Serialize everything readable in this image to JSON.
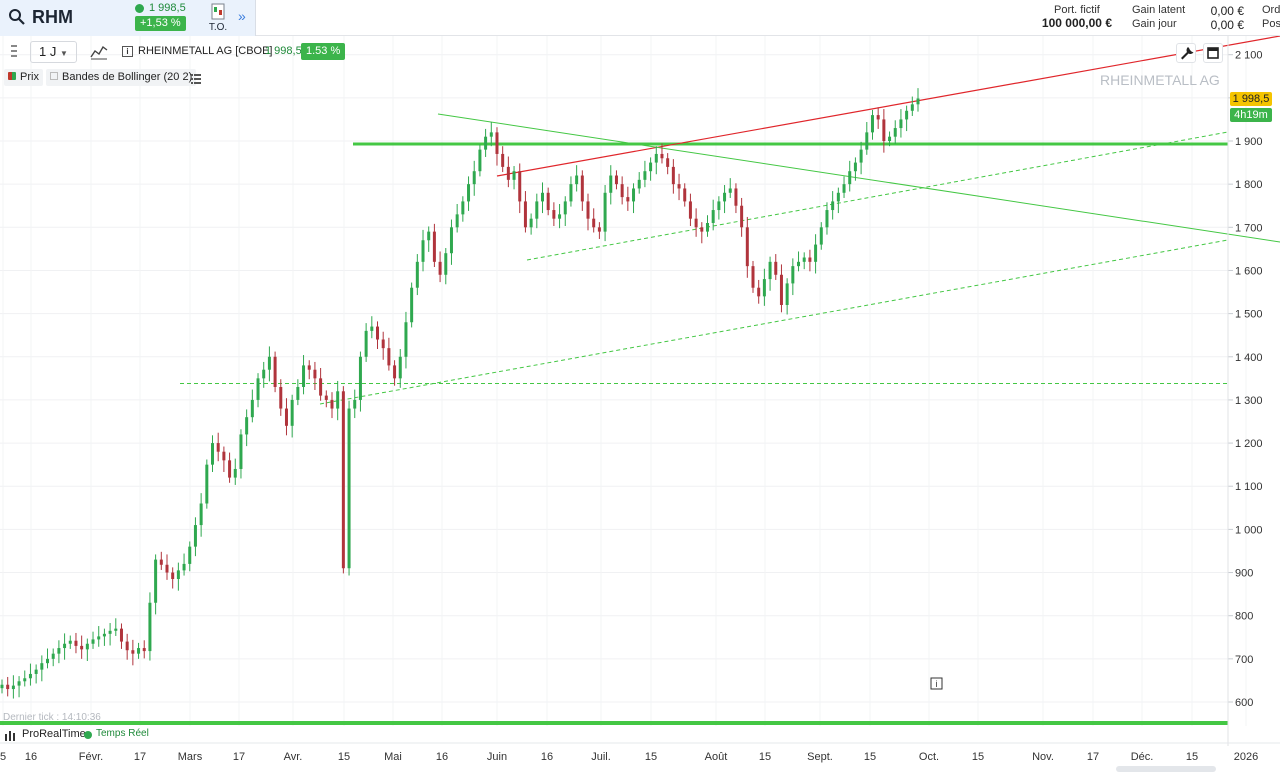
{
  "header": {
    "symbol": "RHM",
    "last_price": "1 998,5",
    "change_pct": "+1,53 %",
    "to_label": "T.O.",
    "more": "»",
    "account": {
      "port_label": "Port. fictif",
      "port_value": "100 000,00 €",
      "gain_latent_label": "Gain latent",
      "gain_latent_value": "0,00 €",
      "gain_jour_label": "Gain jour",
      "gain_jour_value": "0,00 €",
      "cut_1": "Ord",
      "cut_2": "Pos"
    }
  },
  "toolbar": {
    "interval": "1 J",
    "instrument": "RHEINMETALL AG [CBOE]",
    "price": "1 998,5",
    "change": "1.53 %"
  },
  "legend": {
    "price": "Prix",
    "bollinger": "Bandes de Bollinger (20 2)"
  },
  "chart_overlay": {
    "watermark": "RHEINMETALL AG",
    "price_tag": "1 998,5",
    "time_tag": "4h19m",
    "last_tick": "Dernier tick : 14:10:36"
  },
  "status": {
    "platform": "ProRealTime",
    "mode": "Temps Réel"
  },
  "colors": {
    "up": "#2fa84f",
    "down": "#b0343c",
    "support_line": "#44c744",
    "red_trendline": "#e0262b",
    "price_tag": "#f5c400"
  },
  "chart_data": {
    "type": "candlestick",
    "title": "RHEINMETALL AG [CBOE]",
    "y_ticks": [
      600,
      700,
      800,
      900,
      1000,
      1100,
      1200,
      1300,
      1400,
      1500,
      1600,
      1700,
      1800,
      1900,
      2000,
      2100
    ],
    "y_tick_labels": [
      "600",
      "700",
      "800",
      "900",
      "1 000",
      "1 100",
      "1 200",
      "1 300",
      "1 400",
      "1 500",
      "1 600",
      "1 700",
      "1 800",
      "1 900",
      "",
      "2 100"
    ],
    "x_labels": [
      "5",
      "16",
      "Févr.",
      "17",
      "Mars",
      "17",
      "Avr.",
      "15",
      "Mai",
      "16",
      "Juin",
      "16",
      "Juil.",
      "15",
      "Août",
      "15",
      "Sept.",
      "15",
      "Oct.",
      "15",
      "Nov.",
      "17",
      "Déc.",
      "15",
      "2026"
    ],
    "ylim": [
      560,
      2140
    ],
    "last": 1998.5,
    "horizontal_lines": [
      1893,
      1338,
      550
    ],
    "closes": [
      640,
      630,
      638,
      648,
      655,
      665,
      675,
      690,
      700,
      712,
      725,
      735,
      742,
      730,
      722,
      735,
      745,
      752,
      758,
      765,
      770,
      740,
      720,
      712,
      725,
      718,
      830,
      930,
      918,
      900,
      885,
      905,
      920,
      960,
      1010,
      1060,
      1150,
      1200,
      1180,
      1160,
      1120,
      1140,
      1220,
      1260,
      1300,
      1350,
      1370,
      1400,
      1330,
      1280,
      1240,
      1300,
      1330,
      1380,
      1370,
      1350,
      1310,
      1300,
      1280,
      1320,
      910,
      1280,
      1300,
      1400,
      1460,
      1470,
      1440,
      1420,
      1380,
      1350,
      1400,
      1480,
      1560,
      1620,
      1670,
      1690,
      1620,
      1590,
      1640,
      1700,
      1730,
      1760,
      1800,
      1830,
      1880,
      1910,
      1920,
      1870,
      1840,
      1810,
      1830,
      1760,
      1700,
      1720,
      1760,
      1780,
      1740,
      1720,
      1730,
      1760,
      1800,
      1820,
      1760,
      1720,
      1700,
      1690,
      1780,
      1820,
      1800,
      1770,
      1760,
      1790,
      1810,
      1830,
      1850,
      1870,
      1860,
      1840,
      1800,
      1790,
      1760,
      1720,
      1700,
      1690,
      1710,
      1740,
      1760,
      1780,
      1790,
      1750,
      1700,
      1610,
      1560,
      1540,
      1580,
      1620,
      1590,
      1520,
      1570,
      1610,
      1620,
      1630,
      1620,
      1660,
      1700,
      1740,
      1760,
      1780,
      1800,
      1830,
      1850,
      1880,
      1920,
      1960,
      1950,
      1900,
      1910,
      1930,
      1950,
      1970,
      1985,
      1998.5
    ]
  }
}
